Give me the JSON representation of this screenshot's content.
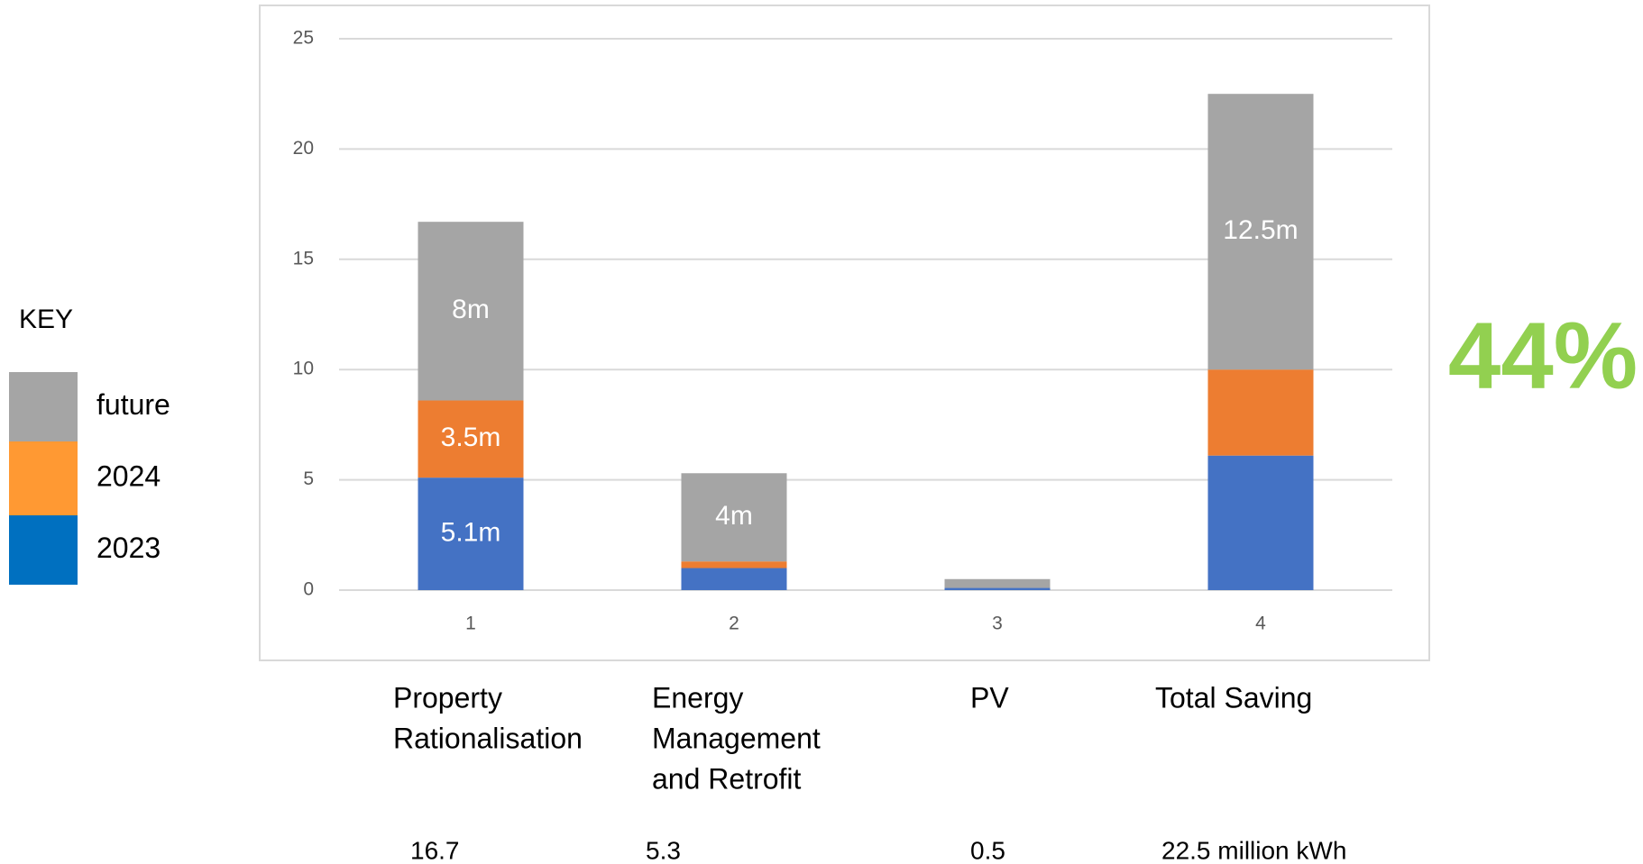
{
  "chart_data": {
    "type": "stacked_bar",
    "categories": [
      "1",
      "2",
      "3",
      "4"
    ],
    "series": [
      {
        "name": "2023",
        "color": "#4472c4",
        "legend_color": "#0070c0",
        "values": [
          5.1,
          1.0,
          0.1,
          6.1
        ],
        "value_labels": [
          "5.1m",
          null,
          null,
          null
        ]
      },
      {
        "name": "2024",
        "color": "#ed7d31",
        "legend_color": "#ff9933",
        "values": [
          3.5,
          0.3,
          0,
          3.9
        ],
        "value_labels": [
          "3.5m",
          null,
          null,
          null
        ]
      },
      {
        "name": "future",
        "color": "#a5a5a5",
        "legend_color": "#a5a5a5",
        "values": [
          8.1,
          4.0,
          0.4,
          12.5
        ],
        "value_labels": [
          "8m",
          "4m",
          null,
          "12.5m"
        ]
      }
    ],
    "ylim": [
      0,
      25
    ],
    "yticks": [
      0,
      5,
      10,
      15,
      20,
      25
    ],
    "grid": true,
    "legend_title": "KEY",
    "category_descriptions": [
      [
        "Property",
        "Rationalisation"
      ],
      [
        "Energy",
        "Management",
        "and Retrofit"
      ],
      [
        "PV"
      ],
      [
        "Total Saving"
      ]
    ],
    "total_labels": [
      "16.7",
      "5.3",
      "0.5",
      "22.5 million kWh"
    ],
    "annotation": "44%"
  }
}
